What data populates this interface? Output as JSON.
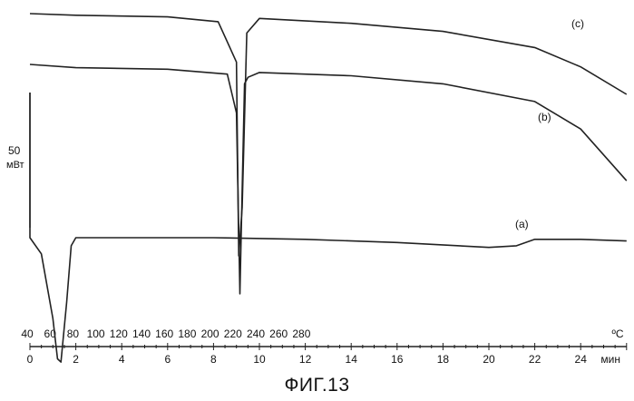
{
  "chart_data": {
    "type": "line",
    "caption": "ФИГ.13",
    "scale_bar": {
      "value": "50",
      "unit": "мВт"
    },
    "x_axis_temperature": {
      "unit": "ºC",
      "ticks": [
        40,
        60,
        80,
        100,
        120,
        140,
        160,
        180,
        200,
        220,
        240,
        260,
        280
      ]
    },
    "x_axis_time": {
      "unit": "мин",
      "ticks": [
        0,
        2,
        4,
        6,
        8,
        10,
        12,
        14,
        16,
        18,
        20,
        22,
        24
      ],
      "xlim": [
        0,
        26
      ]
    },
    "series": [
      {
        "name": "(a)",
        "x": [
          0,
          0.5,
          1.0,
          1.2,
          1.35,
          1.6,
          1.8,
          2.0,
          4,
          8,
          12,
          16,
          20,
          21.2,
          22,
          24,
          26
        ],
        "y": [
          0,
          -10,
          -50,
          -75,
          -77,
          -40,
          -5,
          0,
          0,
          0,
          -1,
          -3,
          -6,
          -5,
          -1,
          -1,
          -2
        ]
      },
      {
        "name": "(b)",
        "x": [
          0,
          2,
          6,
          8.6,
          9.0,
          9.15,
          9.25,
          9.35,
          9.5,
          10,
          14,
          18,
          22,
          24,
          26
        ],
        "y": [
          0,
          -2,
          -3,
          -6,
          -30,
          -142,
          -78,
          -12,
          -8,
          -5,
          -7,
          -12,
          -23,
          -40,
          -72
        ]
      },
      {
        "name": "(c)",
        "x": [
          0,
          2,
          6,
          8.2,
          9.0,
          9.1,
          9.25,
          9.45,
          10,
          14,
          18,
          22,
          24,
          26
        ],
        "y": [
          0,
          -1,
          -2,
          -5,
          -30,
          -150,
          -120,
          -12,
          -3,
          -6,
          -11,
          -21,
          -33,
          -50
        ]
      }
    ]
  }
}
